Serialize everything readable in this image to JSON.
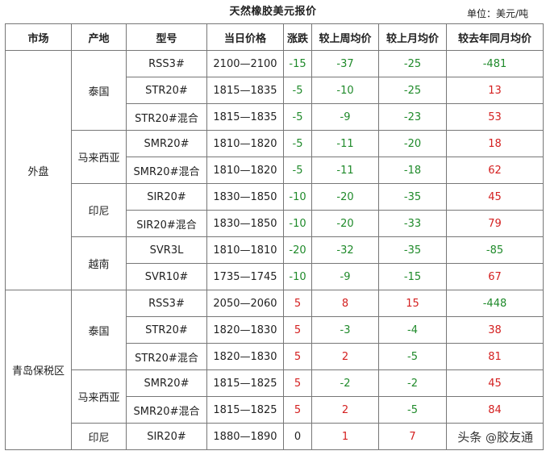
{
  "title": "天然橡胶美元报价",
  "unit": "单位：美元/吨",
  "headers": [
    "市场",
    "产地",
    "型号",
    "当日价格",
    "涨跌",
    "较上周均价",
    "较上月均价",
    "较去年同月均价"
  ],
  "markets": [
    {
      "name": "外盘",
      "origins": [
        {
          "name": "泰国",
          "rows": [
            {
              "model": "RSS3#",
              "price": "2100—2100",
              "change": "-15",
              "vs_week": "-37",
              "vs_month": "-25",
              "vs_year": "-481"
            },
            {
              "model": "STR20#",
              "price": "1815—1835",
              "change": "-5",
              "vs_week": "-10",
              "vs_month": "-25",
              "vs_year": "13"
            },
            {
              "model": "STR20#混合",
              "price": "1815—1835",
              "change": "-5",
              "vs_week": "-9",
              "vs_month": "-23",
              "vs_year": "53"
            }
          ]
        },
        {
          "name": "马来西亚",
          "rows": [
            {
              "model": "SMR20#",
              "price": "1810—1820",
              "change": "-5",
              "vs_week": "-11",
              "vs_month": "-20",
              "vs_year": "18"
            },
            {
              "model": "SMR20#混合",
              "price": "1810—1820",
              "change": "-5",
              "vs_week": "-11",
              "vs_month": "-18",
              "vs_year": "62"
            }
          ]
        },
        {
          "name": "印尼",
          "rows": [
            {
              "model": "SIR20#",
              "price": "1830—1850",
              "change": "-10",
              "vs_week": "-20",
              "vs_month": "-35",
              "vs_year": "45"
            },
            {
              "model": "SIR20#混合",
              "price": "1830—1850",
              "change": "-10",
              "vs_week": "-20",
              "vs_month": "-33",
              "vs_year": "79"
            }
          ]
        },
        {
          "name": "越南",
          "rows": [
            {
              "model": "SVR3L",
              "price": "1810—1810",
              "change": "-20",
              "vs_week": "-32",
              "vs_month": "-35",
              "vs_year": "-85"
            },
            {
              "model": "SVR10#",
              "price": "1735—1745",
              "change": "-10",
              "vs_week": "-9",
              "vs_month": "-15",
              "vs_year": "67"
            }
          ]
        }
      ]
    },
    {
      "name": "青岛保税区",
      "origins": [
        {
          "name": "泰国",
          "rows": [
            {
              "model": "RSS3#",
              "price": "2050—2060",
              "change": "5",
              "vs_week": "8",
              "vs_month": "15",
              "vs_year": "-448"
            },
            {
              "model": "STR20#",
              "price": "1820—1830",
              "change": "5",
              "vs_week": "-3",
              "vs_month": "-4",
              "vs_year": "38"
            },
            {
              "model": "STR20#混合",
              "price": "1820—1830",
              "change": "5",
              "vs_week": "2",
              "vs_month": "-5",
              "vs_year": "81"
            }
          ]
        },
        {
          "name": "马来西亚",
          "rows": [
            {
              "model": "SMR20#",
              "price": "1815—1825",
              "change": "5",
              "vs_week": "-2",
              "vs_month": "-2",
              "vs_year": "45"
            },
            {
              "model": "SMR20#混合",
              "price": "1815—1825",
              "change": "5",
              "vs_week": "2",
              "vs_month": "-5",
              "vs_year": "84"
            }
          ]
        },
        {
          "name": "印尼",
          "rows": [
            {
              "model": "SIR20#",
              "price": "1880—1890",
              "change": "0",
              "vs_week": "1",
              "vs_month": "7",
              "vs_year": ""
            }
          ]
        }
      ]
    }
  ],
  "colors": {
    "positive": "#d42020",
    "negative": "#1f8a2a",
    "neutral": "#222222"
  },
  "watermark": {
    "prefix": "头条 ",
    "at": "@",
    "account": "胶友通"
  }
}
